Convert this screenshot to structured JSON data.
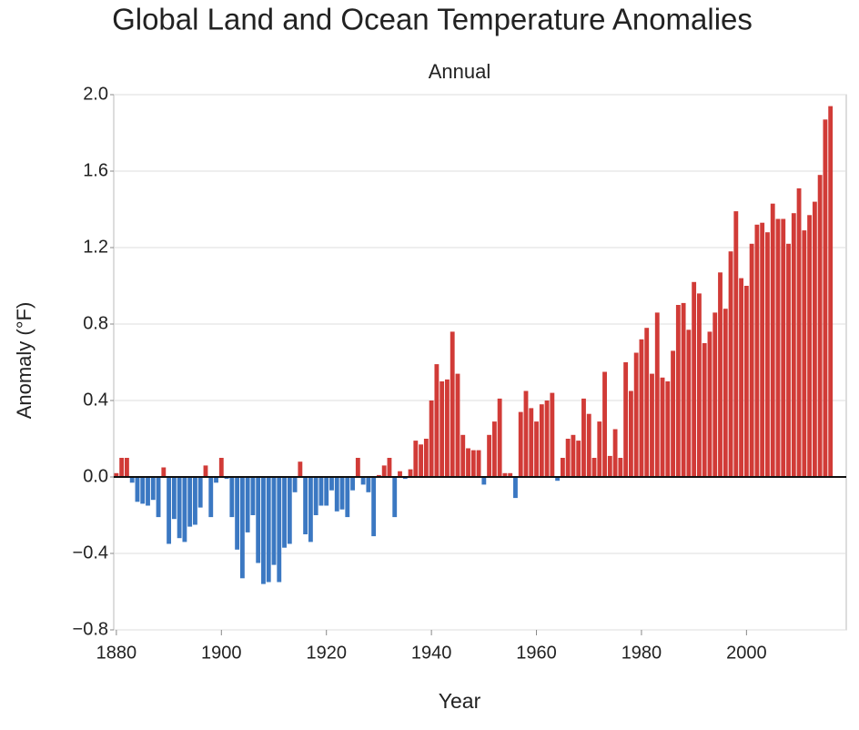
{
  "chart_data": {
    "type": "bar",
    "title": "Global Land and Ocean Temperature Anomalies",
    "subtitle": "Annual",
    "x_label": "Year",
    "y_label": "Anomaly (°F)",
    "positive_color": "#d13b37",
    "negative_color": "#3b78c2",
    "grid": true,
    "xlim": [
      1879.5,
      2019
    ],
    "xticks": [
      1880,
      1900,
      1920,
      1940,
      1960,
      1980,
      2000
    ],
    "ylim": [
      -0.8,
      2.0
    ],
    "yticks": [
      {
        "value": 2.0,
        "label": "2.0"
      },
      1.6,
      1.2,
      0.8,
      0.4,
      {
        "value": 0,
        "label": "0.0"
      },
      {
        "value": -0.4,
        "label": "−0.4"
      },
      {
        "value": -0.8,
        "label": "−0.8"
      }
    ],
    "x": [
      1880,
      1881,
      1882,
      1883,
      1884,
      1885,
      1886,
      1887,
      1888,
      1889,
      1890,
      1891,
      1892,
      1893,
      1894,
      1895,
      1896,
      1897,
      1898,
      1899,
      1900,
      1901,
      1902,
      1903,
      1904,
      1905,
      1906,
      1907,
      1908,
      1909,
      1910,
      1911,
      1912,
      1913,
      1914,
      1915,
      1916,
      1917,
      1918,
      1919,
      1920,
      1921,
      1922,
      1923,
      1924,
      1925,
      1926,
      1927,
      1928,
      1929,
      1930,
      1931,
      1932,
      1933,
      1934,
      1935,
      1936,
      1937,
      1938,
      1939,
      1940,
      1941,
      1942,
      1943,
      1944,
      1945,
      1946,
      1947,
      1948,
      1949,
      1950,
      1951,
      1952,
      1953,
      1954,
      1955,
      1956,
      1957,
      1958,
      1959,
      1960,
      1961,
      1962,
      1963,
      1964,
      1965,
      1966,
      1967,
      1968,
      1969,
      1970,
      1971,
      1972,
      1973,
      1974,
      1975,
      1976,
      1977,
      1978,
      1979,
      1980,
      1981,
      1982,
      1983,
      1984,
      1985,
      1986,
      1987,
      1988,
      1989,
      1990,
      1991,
      1992,
      1993,
      1994,
      1995,
      1996,
      1997,
      1998,
      1999,
      2000,
      2001,
      2002,
      2003,
      2004,
      2005,
      2006,
      2007,
      2008,
      2009,
      2010,
      2011,
      2012,
      2013,
      2014,
      2015,
      2016
    ],
    "values": [
      0.02,
      0.1,
      0.1,
      -0.03,
      -0.13,
      -0.14,
      -0.15,
      -0.12,
      -0.21,
      0.05,
      -0.35,
      -0.22,
      -0.32,
      -0.34,
      -0.26,
      -0.25,
      -0.16,
      0.06,
      -0.21,
      -0.03,
      0.1,
      -0.01,
      -0.21,
      -0.38,
      -0.53,
      -0.29,
      -0.2,
      -0.45,
      -0.56,
      -0.55,
      -0.46,
      -0.55,
      -0.37,
      -0.35,
      -0.08,
      0.08,
      -0.3,
      -0.34,
      -0.2,
      -0.15,
      -0.15,
      -0.07,
      -0.18,
      -0.17,
      -0.21,
      -0.07,
      0.1,
      -0.04,
      -0.08,
      -0.31,
      0.01,
      0.06,
      0.1,
      -0.21,
      0.03,
      -0.01,
      0.04,
      0.19,
      0.17,
      0.2,
      0.4,
      0.59,
      0.5,
      0.51,
      0.76,
      0.54,
      0.22,
      0.15,
      0.14,
      0.14,
      -0.04,
      0.22,
      0.29,
      0.41,
      0.02,
      0.02,
      -0.11,
      0.34,
      0.45,
      0.36,
      0.29,
      0.38,
      0.4,
      0.44,
      -0.02,
      0.1,
      0.2,
      0.22,
      0.19,
      0.41,
      0.33,
      0.1,
      0.29,
      0.55,
      0.11,
      0.25,
      0.1,
      0.6,
      0.45,
      0.65,
      0.72,
      0.78,
      0.54,
      0.86,
      0.52,
      0.5,
      0.66,
      0.9,
      0.91,
      0.77,
      1.02,
      0.96,
      0.7,
      0.76,
      0.86,
      1.07,
      0.88,
      1.18,
      1.39,
      1.04,
      1.0,
      1.22,
      1.32,
      1.33,
      1.28,
      1.43,
      1.35,
      1.35,
      1.22,
      1.38,
      1.51,
      1.29,
      1.37,
      1.44,
      1.58,
      1.87,
      1.94
    ]
  }
}
